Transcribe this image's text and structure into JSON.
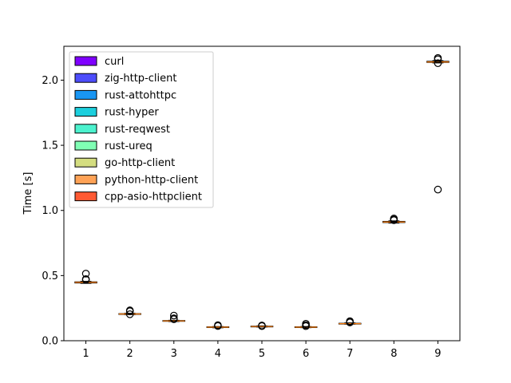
{
  "chart_data": {
    "type": "box",
    "ylabel": "Time [s]",
    "xlabel": "",
    "ylim": [
      0,
      2.26
    ],
    "xlim": [
      0.5,
      9.5
    ],
    "yticks": [
      0.0,
      0.5,
      1.0,
      1.5,
      2.0
    ],
    "ytick_labels": [
      "0.0",
      "0.5",
      "1.0",
      "1.5",
      "2.0"
    ],
    "categories": [
      "1",
      "2",
      "3",
      "4",
      "5",
      "6",
      "7",
      "8",
      "9"
    ],
    "grid": false,
    "legend_placement": "upper-left",
    "series": [
      {
        "name": "curl",
        "color": "#7f00ff",
        "median": 0.448,
        "q1": 0.443,
        "q3": 0.452,
        "whisker_low": 0.44,
        "whisker_high": 0.456,
        "outliers": [
          0.468,
          0.473,
          0.515
        ]
      },
      {
        "name": "zig-http-client",
        "color": "#4d4dfb",
        "median": 0.205,
        "q1": 0.203,
        "q3": 0.208,
        "whisker_low": 0.2,
        "whisker_high": 0.211,
        "outliers": [
          0.203,
          0.226,
          0.233
        ]
      },
      {
        "name": "rust-attohttpc",
        "color": "#1996f3",
        "median": 0.152,
        "q1": 0.15,
        "q3": 0.155,
        "whisker_low": 0.147,
        "whisker_high": 0.157,
        "outliers": [
          0.165,
          0.172,
          0.193
        ]
      },
      {
        "name": "rust-hyper",
        "color": "#1ccfdd",
        "median": 0.104,
        "q1": 0.102,
        "q3": 0.107,
        "whisker_low": 0.099,
        "whisker_high": 0.109,
        "outliers": [
          0.113,
          0.119
        ]
      },
      {
        "name": "rust-reqwest",
        "color": "#4cf2ce",
        "median": 0.109,
        "q1": 0.107,
        "q3": 0.112,
        "whisker_low": 0.105,
        "whisker_high": 0.114,
        "outliers": [
          0.112,
          0.117
        ]
      },
      {
        "name": "rust-ureq",
        "color": "#80ffb4",
        "median": 0.104,
        "q1": 0.102,
        "q3": 0.107,
        "whisker_low": 0.1,
        "whisker_high": 0.109,
        "outliers": [
          0.112,
          0.12,
          0.13
        ]
      },
      {
        "name": "go-http-client",
        "color": "#d4dd80",
        "median": 0.131,
        "q1": 0.129,
        "q3": 0.134,
        "whisker_low": 0.127,
        "whisker_high": 0.137,
        "outliers": [
          0.14,
          0.145,
          0.15
        ]
      },
      {
        "name": "python-http-client",
        "color": "#ffa256",
        "median": 0.911,
        "q1": 0.907,
        "q3": 0.916,
        "whisker_low": 0.903,
        "whisker_high": 0.92,
        "outliers": [
          0.925,
          0.93,
          0.938
        ]
      },
      {
        "name": "cpp-asio-httpclient",
        "color": "#ff5a33",
        "median": 2.14,
        "q1": 2.136,
        "q3": 2.145,
        "whisker_low": 2.132,
        "whisker_high": 2.15,
        "outliers": [
          1.16,
          2.13,
          2.16,
          2.17
        ]
      }
    ]
  }
}
